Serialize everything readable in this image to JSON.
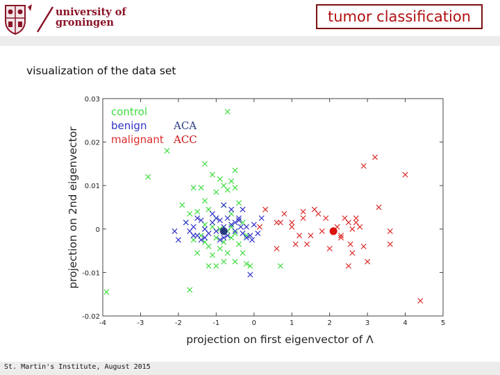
{
  "header": {
    "university_line1": "university of",
    "university_line2": "groningen",
    "slide_title": "tumor classification"
  },
  "subtitle": "visualization of the data set",
  "footer": "St. Martin's Institute, August 2015",
  "colors": {
    "control": "#3fdc3f",
    "benign": "#3030c8",
    "malignant": "#dd2b2b",
    "aca": "#2a3a80",
    "acc": "#c81010"
  },
  "chart_data": {
    "type": "scatter",
    "title": "",
    "xlabel": "projection on first eigenvector of Λ",
    "ylabel": "projection on 2nd eigenvector",
    "xlim": [
      -4,
      5
    ],
    "ylim": [
      -0.02,
      0.03
    ],
    "xticks": [
      "-4",
      "-3",
      "-2",
      "-1",
      "0",
      "1",
      "2",
      "3",
      "4",
      "5"
    ],
    "yticks": [
      "0.03",
      "0.02",
      "0.01",
      "0",
      "-0.01",
      "-0.02"
    ],
    "legend": {
      "position": "top-left",
      "entries": [
        {
          "label": "control",
          "color": "#3fdc3f",
          "marker": "x"
        },
        {
          "label": "benign",
          "color": "#3030c8",
          "marker": "x"
        },
        {
          "label": "malignant",
          "color": "#dd2b2b",
          "marker": "x"
        }
      ],
      "overlay": [
        {
          "label": "ACA",
          "color": "#2a3a80"
        },
        {
          "label": "ACC",
          "color": "#c81010"
        }
      ]
    },
    "series": [
      {
        "name": "control",
        "color": "#3fdc3f",
        "points": [
          [
            -0.7,
            0.027
          ],
          [
            -2.3,
            0.018
          ],
          [
            -2.8,
            0.012
          ],
          [
            -1.3,
            0.015
          ],
          [
            -0.5,
            0.0135
          ],
          [
            -1.1,
            0.0125
          ],
          [
            -1.4,
            0.0095
          ],
          [
            -1.6,
            0.0095
          ],
          [
            -0.8,
            0.01
          ],
          [
            -0.6,
            0.011
          ],
          [
            -0.9,
            0.0115
          ],
          [
            -1.0,
            0.0085
          ],
          [
            -0.7,
            0.009
          ],
          [
            -0.5,
            0.0095
          ],
          [
            -1.3,
            0.0065
          ],
          [
            -1.9,
            0.0055
          ],
          [
            -0.4,
            0.006
          ],
          [
            -0.8,
            0.0055
          ],
          [
            -1.2,
            0.0045
          ],
          [
            -0.6,
            0.0035
          ],
          [
            -1.5,
            0.004
          ],
          [
            -1.7,
            0.0035
          ],
          [
            -1.0,
            0.0025
          ],
          [
            -0.3,
            0.0015
          ],
          [
            -0.9,
            0.0
          ],
          [
            -1.1,
            0.0005
          ],
          [
            -0.7,
            -0.0005
          ],
          [
            -1.4,
            -0.0015
          ],
          [
            -0.5,
            -0.001
          ],
          [
            -1.3,
            -0.003
          ],
          [
            -0.8,
            -0.003
          ],
          [
            -1.6,
            -0.0025
          ],
          [
            -0.6,
            -0.002
          ],
          [
            -1.0,
            -0.002
          ],
          [
            -0.4,
            -0.0035
          ],
          [
            -1.2,
            -0.004
          ],
          [
            -0.9,
            -0.0045
          ],
          [
            -0.7,
            -0.0055
          ],
          [
            -1.1,
            -0.006
          ],
          [
            -0.3,
            -0.0055
          ],
          [
            -1.5,
            -0.0055
          ],
          [
            -0.8,
            -0.0075
          ],
          [
            -1.2,
            -0.0085
          ],
          [
            -0.2,
            -0.008
          ],
          [
            -0.1,
            -0.0085
          ],
          [
            0.7,
            -0.0085
          ],
          [
            -1.0,
            -0.0085
          ],
          [
            -0.5,
            -0.0075
          ],
          [
            -1.7,
            -0.014
          ],
          [
            -3.9,
            -0.0145
          ],
          [
            -0.6,
            0.0005
          ],
          [
            -1.3,
            0.001
          ],
          [
            -0.2,
            -0.0015
          ],
          [
            -1.8,
            0.0015
          ]
        ]
      },
      {
        "name": "benign",
        "color": "#3030c8",
        "points": [
          [
            -2.1,
            -0.0005
          ],
          [
            -2.0,
            -0.0025
          ],
          [
            -1.8,
            0.0015
          ],
          [
            -1.6,
            0.0005
          ],
          [
            -1.5,
            -0.0015
          ],
          [
            -1.4,
            0.002
          ],
          [
            -1.3,
            0.0
          ],
          [
            -1.2,
            -0.001
          ],
          [
            -1.1,
            0.0015
          ],
          [
            -1.0,
            -0.0005
          ],
          [
            -0.9,
            0.002
          ],
          [
            -0.8,
            0.0005
          ],
          [
            -0.7,
            -0.0015
          ],
          [
            -0.6,
            0.001
          ],
          [
            -0.5,
            -0.0005
          ],
          [
            -0.4,
            0.002
          ],
          [
            -0.3,
            -0.001
          ],
          [
            -0.2,
            0.0005
          ],
          [
            -0.1,
            -0.0015
          ],
          [
            0.0,
            0.001
          ],
          [
            0.2,
            0.0025
          ],
          [
            -1.4,
            -0.0025
          ],
          [
            -0.9,
            -0.0025
          ],
          [
            -1.7,
            -0.0005
          ],
          [
            -0.6,
            0.0045
          ],
          [
            -0.4,
            0.0025
          ],
          [
            -1.1,
            0.0035
          ],
          [
            -0.8,
            0.0055
          ],
          [
            -0.3,
            0.0045
          ],
          [
            -1.5,
            0.0025
          ],
          [
            -0.05,
            -0.0025
          ],
          [
            0.1,
            -0.001
          ],
          [
            -1.6,
            -0.0015
          ],
          [
            -0.7,
            0.0025
          ],
          [
            -0.5,
            0.0015
          ],
          [
            -0.1,
            -0.0105
          ],
          [
            -1.3,
            -0.002
          ],
          [
            -0.2,
            -0.002
          ],
          [
            -1.0,
            0.0025
          ],
          [
            -0.8,
            -0.002
          ],
          [
            -0.35,
            0.0005
          ]
        ]
      },
      {
        "name": "malignant",
        "color": "#dd2b2b",
        "points": [
          [
            0.3,
            0.0045
          ],
          [
            0.8,
            0.0035
          ],
          [
            0.7,
            0.0015
          ],
          [
            1.0,
            0.0015
          ],
          [
            1.3,
            0.0025
          ],
          [
            1.6,
            0.0045
          ],
          [
            1.7,
            0.0035
          ],
          [
            1.9,
            0.0025
          ],
          [
            2.2,
            0.0005
          ],
          [
            2.4,
            0.0025
          ],
          [
            2.5,
            0.0015
          ],
          [
            2.6,
            0.0
          ],
          [
            2.7,
            0.0025
          ],
          [
            2.3,
            -0.0015
          ],
          [
            1.8,
            -0.0005
          ],
          [
            1.2,
            -0.0015
          ],
          [
            1.5,
            -0.0015
          ],
          [
            1.1,
            -0.0035
          ],
          [
            1.4,
            -0.0035
          ],
          [
            2.0,
            -0.0045
          ],
          [
            2.6,
            -0.0055
          ],
          [
            2.5,
            -0.0085
          ],
          [
            2.8,
            0.0005
          ],
          [
            3.0,
            -0.0075
          ],
          [
            3.6,
            -0.0005
          ],
          [
            3.6,
            -0.0035
          ],
          [
            3.2,
            0.0165
          ],
          [
            2.9,
            0.0145
          ],
          [
            4.0,
            0.0125
          ],
          [
            3.3,
            0.005
          ],
          [
            4.4,
            -0.0165
          ],
          [
            0.6,
            -0.0045
          ],
          [
            2.3,
            -0.002
          ],
          [
            2.55,
            -0.0035
          ],
          [
            1.0,
            0.0005
          ],
          [
            2.9,
            -0.004
          ],
          [
            1.3,
            0.004
          ],
          [
            0.15,
            0.0005
          ],
          [
            0.6,
            0.0015
          ],
          [
            2.7,
            0.0015
          ]
        ]
      }
    ],
    "highlights": [
      {
        "label": "ACA",
        "x": -0.8,
        "y": -0.0005,
        "color": "#2a3a80"
      },
      {
        "label": "ACC",
        "x": 2.1,
        "y": -0.0005,
        "color": "#dd1010"
      }
    ]
  }
}
